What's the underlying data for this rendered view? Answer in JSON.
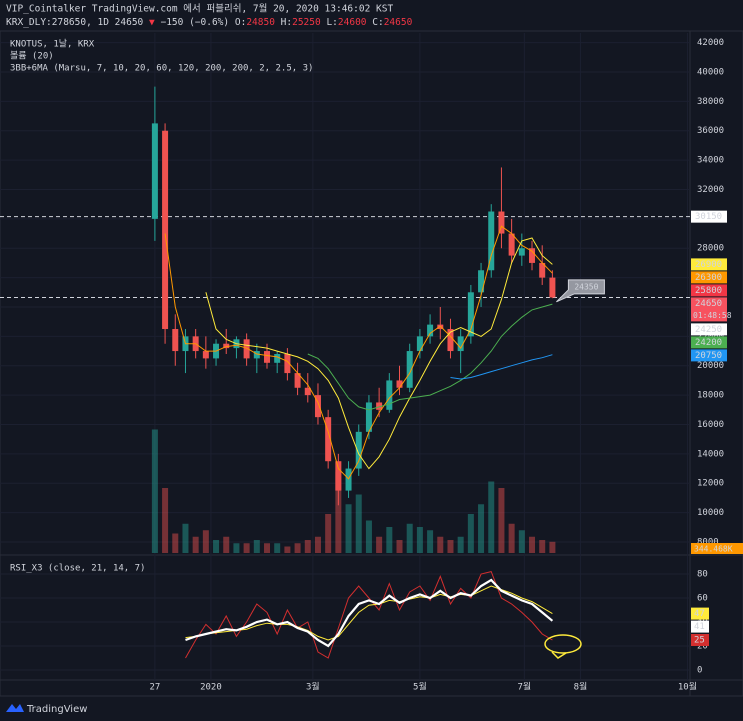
{
  "header": {
    "title": "VIP_Cointalker TradingView.com 에서 퍼블리쉬, 7월 20, 2020 13:46:02 KST",
    "symbol": "KRX_DLY:278650, 1D 24650",
    "arrow": "▼",
    "change": "−150 (−0.6%)",
    "ohlc": [
      {
        "label": "O:",
        "value": 24850
      },
      {
        "label": "H:",
        "value": 25250
      },
      {
        "label": "L:",
        "value": 24600
      },
      {
        "label": "C:",
        "value": 24650
      }
    ]
  },
  "chart_data": {
    "type": "candlestick",
    "legend_lines": [
      "KNOTUS, 1날, KRX",
      "볼륨 (20)",
      "3BB+6MA (Marsu, 7, 10, 20, 60, 120, 200, 200, 2, 2.5, 3)"
    ],
    "x": [
      0,
      4,
      8,
      12,
      16,
      20,
      24,
      28,
      32,
      36,
      40,
      44,
      48,
      52,
      56,
      60,
      64,
      68,
      72,
      76,
      80,
      84,
      88,
      92,
      96,
      100,
      104,
      108,
      112,
      116,
      120,
      124,
      128,
      132,
      136,
      140,
      144,
      148,
      152,
      156
    ],
    "xlim": [
      -60,
      210
    ],
    "xticks": [
      {
        "value": 0,
        "label": "27"
      },
      {
        "value": 22,
        "label": "2020"
      },
      {
        "value": 62,
        "label": "3월"
      },
      {
        "value": 104,
        "label": "5월"
      },
      {
        "value": 145,
        "label": "7월"
      },
      {
        "value": 167,
        "label": "8월"
      },
      {
        "value": 209,
        "label": "10월"
      }
    ],
    "open": [
      30000,
      36000,
      22500,
      21000,
      22000,
      21000,
      20500,
      21500,
      21200,
      21800,
      20500,
      21000,
      20200,
      20800,
      19500,
      18500,
      18000,
      16500,
      13500,
      11500,
      13000,
      15500,
      17500,
      17000,
      19000,
      18500,
      21000,
      22000,
      22800,
      22500,
      21000,
      22000,
      25000,
      26500,
      30500,
      29000,
      27500,
      28000,
      27000,
      26000
    ],
    "high": [
      39000,
      36500,
      23500,
      22500,
      22500,
      22000,
      21800,
      22500,
      22000,
      22200,
      21500,
      21500,
      21000,
      21200,
      20200,
      19500,
      18800,
      17000,
      14000,
      13500,
      16000,
      18000,
      18500,
      19500,
      20000,
      21500,
      22500,
      23500,
      24000,
      23200,
      22500,
      25500,
      27000,
      31000,
      33500,
      30000,
      29000,
      28500,
      28200,
      26500
    ],
    "low": [
      28500,
      21500,
      20000,
      19500,
      20500,
      19800,
      20000,
      20800,
      20500,
      20000,
      19500,
      19800,
      19500,
      19000,
      18000,
      17500,
      16000,
      13000,
      10500,
      11000,
      12500,
      15000,
      16500,
      16800,
      18000,
      18200,
      20500,
      21500,
      21800,
      20500,
      19500,
      21500,
      24000,
      26000,
      28000,
      27000,
      26800,
      26500,
      25500,
      24600
    ],
    "close": [
      36500,
      22500,
      21000,
      22000,
      21000,
      20500,
      21500,
      21200,
      21800,
      20500,
      21000,
      20200,
      20800,
      19500,
      18500,
      18000,
      16500,
      13500,
      11500,
      13000,
      15500,
      17500,
      17000,
      19000,
      18500,
      21000,
      22000,
      22800,
      22500,
      21000,
      22000,
      25000,
      26500,
      30500,
      29000,
      27500,
      28000,
      27000,
      26000,
      24650
    ],
    "up_color": "#26a69a",
    "down_color": "#ef5350",
    "volume": [
      3800000,
      2000000,
      600000,
      900000,
      500000,
      700000,
      400000,
      500000,
      300000,
      300000,
      400000,
      300000,
      300000,
      200000,
      300000,
      400000,
      500000,
      1200000,
      2500000,
      1500000,
      1800000,
      1000000,
      500000,
      800000,
      400000,
      900000,
      800000,
      700000,
      500000,
      400000,
      500000,
      1200000,
      1500000,
      2200000,
      2000000,
      900000,
      700000,
      500000,
      400000,
      344468
    ],
    "volume_ylim": [
      0,
      4000000
    ],
    "volume_label": "344.468K",
    "ylim": [
      8000,
      42000
    ],
    "yticks": [
      8000,
      10000,
      12000,
      14000,
      16000,
      18000,
      20000,
      22000,
      24000,
      26000,
      28000,
      30000,
      32000,
      34000,
      36000,
      38000,
      40000,
      42000
    ],
    "ma": [
      {
        "color": "#ff9800",
        "values": [
          null,
          29000,
          24000,
          21500,
          21500,
          21000,
          21000,
          21300,
          21400,
          21200,
          20800,
          20700,
          20600,
          20300,
          19500,
          18700,
          17500,
          15500,
          13000,
          12300,
          13500,
          15500,
          16800,
          17800,
          18500,
          19500,
          21000,
          22200,
          22700,
          22000,
          21200,
          22500,
          24800,
          27500,
          29500,
          29000,
          28200,
          27800,
          27000,
          26300
        ]
      },
      {
        "color": "#ffeb3b",
        "values": [
          null,
          null,
          null,
          null,
          null,
          25000,
          22500,
          21800,
          21500,
          21400,
          21300,
          21200,
          21000,
          20800,
          20600,
          20300,
          19800,
          19000,
          17800,
          15800,
          14000,
          13000,
          13800,
          15000,
          16500,
          17800,
          19000,
          20300,
          21500,
          22300,
          22600,
          22300,
          22000,
          22500,
          24500,
          27000,
          28500,
          28700,
          27500,
          26900
        ]
      },
      {
        "color": "#4caf50",
        "values": [
          null,
          null,
          null,
          null,
          null,
          null,
          null,
          null,
          null,
          null,
          null,
          null,
          null,
          null,
          null,
          20800,
          20500,
          19800,
          18800,
          17800,
          17200,
          17000,
          17200,
          17400,
          17700,
          17800,
          17900,
          18000,
          18300,
          18600,
          19000,
          19500,
          20200,
          21000,
          22000,
          22700,
          23300,
          23800,
          24000,
          24200
        ]
      },
      {
        "color": "#2196f3",
        "values": [
          null,
          null,
          null,
          null,
          null,
          null,
          null,
          null,
          null,
          null,
          null,
          null,
          null,
          null,
          null,
          null,
          null,
          null,
          null,
          null,
          null,
          null,
          null,
          null,
          null,
          null,
          null,
          null,
          null,
          19200,
          19100,
          19200,
          19400,
          19600,
          19800,
          20000,
          20200,
          20400,
          20550,
          20750
        ]
      }
    ],
    "markers": [
      {
        "value": 30150,
        "color": "#ffffff"
      },
      {
        "value": 25800,
        "color": "#f23645"
      },
      {
        "value": 24650,
        "color": "#f7525f"
      },
      {
        "value": 24250,
        "color": "#ffffff"
      }
    ],
    "hlines": [
      30150,
      24650
    ],
    "countdown": "01:48:58",
    "callout": 24350,
    "rsi": {
      "title": "RSI_X3 (close, 21, 14, 7)",
      "ylim": [
        0,
        80
      ],
      "yticks": [
        0,
        20,
        40,
        60,
        80
      ],
      "series": [
        {
          "color": "#d32f2f",
          "values": [
            null,
            null,
            null,
            10,
            25,
            38,
            30,
            45,
            28,
            40,
            55,
            48,
            30,
            50,
            35,
            40,
            15,
            10,
            35,
            60,
            70,
            60,
            50,
            72,
            50,
            65,
            70,
            58,
            78,
            55,
            68,
            60,
            80,
            82,
            60,
            55,
            48,
            40,
            30,
            25
          ]
        },
        {
          "color": "#ffeb3b",
          "values": [
            null,
            null,
            null,
            27,
            28,
            30,
            31,
            32,
            33,
            34,
            37,
            39,
            38,
            38,
            36,
            33,
            28,
            25,
            28,
            38,
            48,
            54,
            55,
            58,
            57,
            59,
            61,
            60,
            63,
            61,
            63,
            62,
            66,
            70,
            67,
            64,
            60,
            57,
            52,
            47
          ]
        },
        {
          "color": "#ffffff",
          "values": [
            null,
            null,
            null,
            25,
            28,
            30,
            32,
            34,
            33,
            36,
            40,
            42,
            38,
            40,
            35,
            32,
            25,
            20,
            30,
            45,
            55,
            58,
            55,
            62,
            56,
            60,
            63,
            60,
            66,
            60,
            64,
            62,
            70,
            75,
            66,
            62,
            58,
            55,
            48,
            41
          ]
        }
      ]
    }
  },
  "footer": {
    "brand": "TradingView"
  }
}
